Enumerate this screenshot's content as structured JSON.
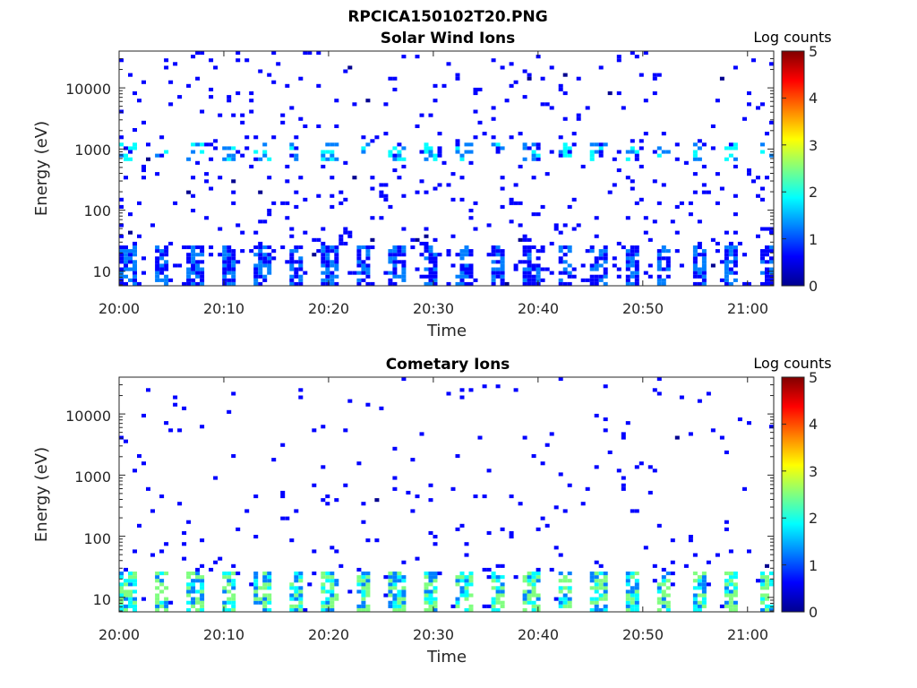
{
  "figure_title": "RPCICA150102T20.PNG",
  "colors": {
    "colormap": [
      "#00008f",
      "#0000ff",
      "#0080ff",
      "#00ffff",
      "#80ff80",
      "#ffff00",
      "#ff8000",
      "#ff0000",
      "#800000"
    ],
    "axis": "#262626"
  },
  "chart_data": [
    {
      "type": "heatmap",
      "title": "Solar Wind Ions",
      "xlabel": "Time",
      "ylabel": "Energy (eV)",
      "x_tick_labels": [
        "20:00",
        "20:10",
        "20:20",
        "20:30",
        "20:40",
        "20:50",
        "21:00"
      ],
      "x_tick_minutes": [
        0,
        10,
        20,
        30,
        40,
        50,
        60
      ],
      "xlim_minutes": [
        0,
        62.5
      ],
      "y_scale": "log",
      "ylim": [
        5.8,
        40000
      ],
      "y_tick_labels": [
        "10",
        "100",
        "1000",
        "10000"
      ],
      "y_tick_values": [
        10,
        100,
        1000,
        10000
      ],
      "colorbar": {
        "label": "Log counts",
        "ticks": [
          "0",
          "1",
          "2",
          "3",
          "4",
          "5"
        ],
        "range": [
          0,
          5
        ]
      },
      "features": {
        "low_energy_band_eV": [
          5.8,
          28
        ],
        "low_energy_band_level": 0.9,
        "mid_band_eV": [
          600,
          1400
        ],
        "mid_band_level": 1.6,
        "peak_level": 2.8,
        "sweep_period_minutes": 3.2,
        "background_level": 0.3
      }
    },
    {
      "type": "heatmap",
      "title": "Cometary Ions",
      "xlabel": "Time",
      "ylabel": "Energy (eV)",
      "x_tick_labels": [
        "20:00",
        "20:10",
        "20:20",
        "20:30",
        "20:40",
        "20:50",
        "21:00"
      ],
      "x_tick_minutes": [
        0,
        10,
        20,
        30,
        40,
        50,
        60
      ],
      "xlim_minutes": [
        0,
        62.5
      ],
      "y_scale": "log",
      "ylim": [
        5.8,
        40000
      ],
      "y_tick_labels": [
        "10",
        "100",
        "1000",
        "10000"
      ],
      "y_tick_values": [
        10,
        100,
        1000,
        10000
      ],
      "colorbar": {
        "label": "Log counts",
        "ticks": [
          "0",
          "1",
          "2",
          "3",
          "4",
          "5"
        ],
        "range": [
          0,
          5
        ]
      },
      "features": {
        "low_energy_band_eV": [
          5.8,
          28
        ],
        "low_energy_band_level": 2.0,
        "peak_level": 2.5,
        "sweep_period_minutes": 3.2,
        "background_level": 0.3
      }
    }
  ]
}
